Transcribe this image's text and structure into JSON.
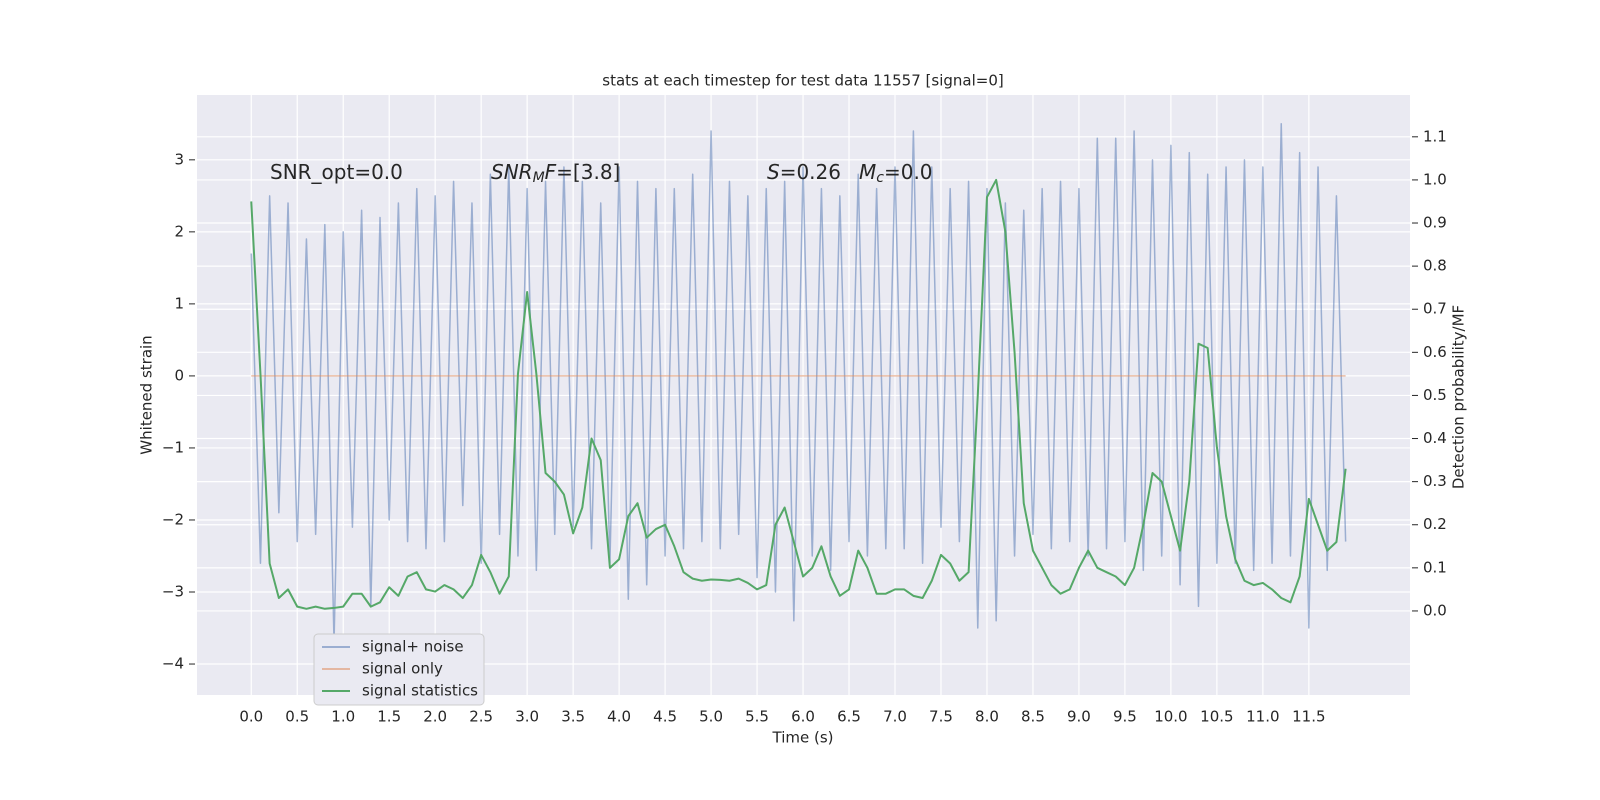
{
  "chart_data": {
    "type": "line",
    "title": "stats at each timestep for test data 11557 [signal=0]",
    "xlabel": "Time (s)",
    "ylabel": "Whitened strain",
    "y2label": "Detection probability/MF",
    "annotations": [
      [
        {
          "text": "SNR_opt=0.0"
        }
      ],
      [
        {
          "text": "SNR",
          "style": "italic"
        },
        {
          "text": "M",
          "style": "italic",
          "baseline": "sub"
        },
        {
          "text": "F",
          "style": "italic"
        },
        {
          "text": "=[3.8]"
        }
      ],
      [
        {
          "text": "S",
          "style": "italic"
        },
        {
          "text": "=0.26"
        }
      ],
      [
        {
          "text": "M",
          "style": "italic"
        },
        {
          "text": "c",
          "style": "italic",
          "baseline": "sub"
        },
        {
          "text": "=0.0"
        }
      ]
    ],
    "x": [
      0.0,
      0.1,
      0.2,
      0.3,
      0.4,
      0.5,
      0.6,
      0.7,
      0.8,
      0.9,
      1.0,
      1.1,
      1.2,
      1.3,
      1.4,
      1.5,
      1.6,
      1.7,
      1.8,
      1.9,
      2.0,
      2.1,
      2.2,
      2.3,
      2.4,
      2.5,
      2.6,
      2.7,
      2.8,
      2.9,
      3.0,
      3.1,
      3.2,
      3.3,
      3.4,
      3.5,
      3.6,
      3.7,
      3.8,
      3.9,
      4.0,
      4.1,
      4.2,
      4.3,
      4.4,
      4.5,
      4.6,
      4.7,
      4.8,
      4.9,
      5.0,
      5.1,
      5.2,
      5.3,
      5.4,
      5.5,
      5.6,
      5.7,
      5.8,
      5.9,
      6.0,
      6.1,
      6.2,
      6.3,
      6.4,
      6.5,
      6.6,
      6.7,
      6.8,
      6.9,
      7.0,
      7.1,
      7.2,
      7.3,
      7.4,
      7.5,
      7.6,
      7.7,
      7.8,
      7.9,
      8.0,
      8.1,
      8.2,
      8.3,
      8.4,
      8.5,
      8.6,
      8.7,
      8.8,
      8.9,
      9.0,
      9.1,
      9.2,
      9.3,
      9.4,
      9.5,
      9.6,
      9.7,
      9.8,
      9.9,
      10.0,
      10.1,
      10.2,
      10.3,
      10.4,
      10.5,
      10.6,
      10.7,
      10.8,
      10.9,
      11.0,
      11.1,
      11.2,
      11.3,
      11.4,
      11.5,
      11.6,
      11.7,
      11.8,
      11.9
    ],
    "series": [
      {
        "name": "signal+ noise",
        "color": "#4c72b0",
        "alpha": 0.5,
        "values": [
          1.7,
          -2.6,
          2.5,
          -1.9,
          2.4,
          -2.3,
          1.9,
          -2.2,
          2.1,
          -3.7,
          2.0,
          -2.1,
          2.3,
          -3.2,
          2.2,
          -2.0,
          2.4,
          -2.3,
          2.6,
          -2.4,
          2.5,
          -2.3,
          2.7,
          -1.8,
          2.4,
          -2.6,
          2.8,
          -2.2,
          2.9,
          -2.5,
          2.6,
          -2.7,
          2.7,
          -2.2,
          2.9,
          -2.1,
          2.7,
          -2.4,
          2.4,
          -2.6,
          2.9,
          -3.1,
          2.7,
          -2.9,
          2.6,
          -2.5,
          2.6,
          -2.4,
          2.8,
          -2.3,
          3.4,
          -2.4,
          2.7,
          -2.2,
          2.5,
          -2.8,
          2.6,
          -3.0,
          2.7,
          -3.4,
          2.9,
          -2.5,
          2.6,
          -2.7,
          2.5,
          -2.3,
          2.8,
          -2.5,
          2.6,
          -2.4,
          2.9,
          -2.4,
          3.4,
          -2.6,
          2.9,
          -2.1,
          2.6,
          -2.3,
          2.7,
          -3.5,
          2.6,
          -3.4,
          2.4,
          -2.5,
          2.3,
          -2.2,
          2.6,
          -2.4,
          2.7,
          -2.3,
          2.6,
          -2.5,
          3.3,
          -2.4,
          3.3,
          -2.3,
          3.4,
          -2.7,
          3.0,
          -2.5,
          3.2,
          -2.9,
          3.1,
          -3.2,
          2.8,
          -2.6,
          2.9,
          -2.6,
          3.0,
          -2.7,
          2.9,
          -2.6,
          3.5,
          -2.5,
          3.1,
          -3.5,
          2.9,
          -2.7,
          2.5,
          -2.3
        ]
      },
      {
        "name": "signal only",
        "color": "#dd8452",
        "alpha": 0.5,
        "values": [
          0,
          0,
          0,
          0,
          0,
          0,
          0,
          0,
          0,
          0,
          0,
          0,
          0,
          0,
          0,
          0,
          0,
          0,
          0,
          0,
          0,
          0,
          0,
          0,
          0,
          0,
          0,
          0,
          0,
          0,
          0,
          0,
          0,
          0,
          0,
          0,
          0,
          0,
          0,
          0,
          0,
          0,
          0,
          0,
          0,
          0,
          0,
          0,
          0,
          0,
          0,
          0,
          0,
          0,
          0,
          0,
          0,
          0,
          0,
          0,
          0,
          0,
          0,
          0,
          0,
          0,
          0,
          0,
          0,
          0,
          0,
          0,
          0,
          0,
          0,
          0,
          0,
          0,
          0,
          0,
          0,
          0,
          0,
          0,
          0,
          0,
          0,
          0,
          0,
          0,
          0,
          0,
          0,
          0,
          0,
          0,
          0,
          0,
          0,
          0,
          0,
          0,
          0,
          0,
          0,
          0,
          0,
          0,
          0,
          0,
          0,
          0,
          0,
          0,
          0,
          0,
          0,
          0,
          0,
          0
        ]
      },
      {
        "name": "signal statistics",
        "color": "#55a868",
        "alpha": 1,
        "axis": "y2",
        "values": [
          0.95,
          0.55,
          0.11,
          0.03,
          0.05,
          0.01,
          0.005,
          0.01,
          0.005,
          0.007,
          0.01,
          0.04,
          0.04,
          0.01,
          0.02,
          0.055,
          0.035,
          0.08,
          0.09,
          0.05,
          0.045,
          0.06,
          0.05,
          0.03,
          0.06,
          0.13,
          0.09,
          0.04,
          0.08,
          0.55,
          0.74,
          0.55,
          0.32,
          0.3,
          0.27,
          0.18,
          0.24,
          0.4,
          0.35,
          0.1,
          0.12,
          0.22,
          0.25,
          0.17,
          0.19,
          0.2,
          0.15,
          0.09,
          0.075,
          0.07,
          0.073,
          0.072,
          0.07,
          0.075,
          0.065,
          0.05,
          0.06,
          0.2,
          0.24,
          0.16,
          0.08,
          0.1,
          0.15,
          0.08,
          0.035,
          0.05,
          0.14,
          0.1,
          0.04,
          0.04,
          0.05,
          0.05,
          0.035,
          0.03,
          0.07,
          0.13,
          0.11,
          0.07,
          0.09,
          0.5,
          0.96,
          1.0,
          0.88,
          0.6,
          0.25,
          0.14,
          0.1,
          0.06,
          0.04,
          0.05,
          0.1,
          0.14,
          0.1,
          0.09,
          0.08,
          0.06,
          0.1,
          0.2,
          0.32,
          0.3,
          0.22,
          0.14,
          0.3,
          0.62,
          0.61,
          0.38,
          0.22,
          0.12,
          0.07,
          0.06,
          0.065,
          0.05,
          0.03,
          0.02,
          0.08,
          0.26,
          0.2,
          0.14,
          0.16,
          0.33
        ]
      }
    ],
    "xlim": [
      -0.59,
      12.6
    ],
    "ylim": [
      -4.43,
      3.9
    ],
    "y2lim": [
      -0.195,
      1.197
    ],
    "xticks": [
      {
        "value": 0,
        "label": "0.0"
      },
      {
        "value": 0.5,
        "label": "0.5"
      },
      {
        "value": 1,
        "label": "1.0"
      },
      {
        "value": 1.5,
        "label": "1.5"
      },
      {
        "value": 2,
        "label": "2.0"
      },
      {
        "value": 2.5,
        "label": "2.5"
      },
      {
        "value": 3,
        "label": "3.0"
      },
      {
        "value": 3.5,
        "label": "3.5"
      },
      {
        "value": 4,
        "label": "4.0"
      },
      {
        "value": 4.5,
        "label": "4.5"
      },
      {
        "value": 5,
        "label": "5.0"
      },
      {
        "value": 5.5,
        "label": "5.5"
      },
      {
        "value": 6,
        "label": "6.0"
      },
      {
        "value": 6.5,
        "label": "6.5"
      },
      {
        "value": 7,
        "label": "7.0"
      },
      {
        "value": 7.5,
        "label": "7.5"
      },
      {
        "value": 8,
        "label": "8.0"
      },
      {
        "value": 8.5,
        "label": "8.5"
      },
      {
        "value": 9,
        "label": "9.0"
      },
      {
        "value": 9.5,
        "label": "9.5"
      },
      {
        "value": 10,
        "label": "10.0"
      },
      {
        "value": 10.5,
        "label": "10.5"
      },
      {
        "value": 11,
        "label": "11.0"
      },
      {
        "value": 11.5,
        "label": "11.5"
      }
    ],
    "yticks": [
      {
        "value": -4,
        "label": "−4"
      },
      {
        "value": -3,
        "label": "−3"
      },
      {
        "value": -2,
        "label": "−2"
      },
      {
        "value": -1,
        "label": "−1"
      },
      0,
      1,
      2,
      3
    ],
    "y2ticks": [
      {
        "value": 0,
        "label": "0.0"
      },
      {
        "value": 0.1,
        "label": "0.1"
      },
      {
        "value": 0.2,
        "label": "0.2"
      },
      {
        "value": 0.3,
        "label": "0.3"
      },
      {
        "value": 0.4,
        "label": "0.4"
      },
      {
        "value": 0.5,
        "label": "0.5"
      },
      {
        "value": 0.6,
        "label": "0.6"
      },
      {
        "value": 0.7,
        "label": "0.7"
      },
      {
        "value": 0.8,
        "label": "0.8"
      },
      {
        "value": 0.9,
        "label": "0.9"
      },
      {
        "value": 1.0,
        "label": "1.0"
      },
      {
        "value": 1.1,
        "label": "1.1"
      }
    ],
    "grid": true
  }
}
